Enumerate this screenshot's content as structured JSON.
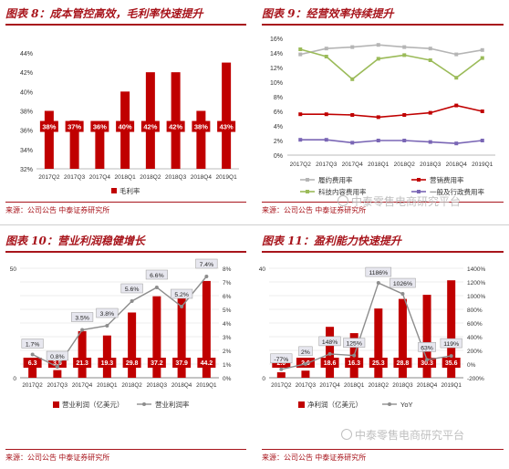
{
  "colors": {
    "accent": "#a8151c",
    "bar": "#c00000",
    "grid": "#e6e6e6"
  },
  "panels": [
    {
      "title": "图表 8：成本管控高效，毛利率快速提升",
      "source": "来源：公司公告  中泰证券研究所",
      "chart_data": {
        "type": "bar",
        "categories": [
          "2017Q2",
          "2017Q3",
          "2017Q4",
          "2018Q1",
          "2018Q2",
          "2018Q3",
          "2018Q4",
          "2019Q1"
        ],
        "series": [
          {
            "name": "毛利率",
            "values": [
              38,
              37,
              36,
              40,
              42,
              42,
              38,
              43
            ]
          }
        ],
        "data_labels": [
          "38%",
          "37%",
          "36%",
          "40%",
          "42%",
          "42%",
          "38%",
          "43%"
        ],
        "ylim": [
          32,
          44
        ],
        "yticks": [
          "32%",
          "34%",
          "36%",
          "38%",
          "40%",
          "42%",
          "44%"
        ],
        "legend": "bottom"
      }
    },
    {
      "title": "图表 9：经营效率持续提升",
      "source": "来源：公司公告  中泰证券研究所",
      "chart_data": {
        "type": "line",
        "categories": [
          "2017Q2",
          "2017Q3",
          "2017Q4",
          "2018Q1",
          "2018Q2",
          "2018Q3",
          "2018Q4",
          "2019Q1"
        ],
        "series": [
          {
            "name": "履约费用率",
            "color": "#b5b5b5",
            "values": [
              13.8,
              14.6,
              14.8,
              15.1,
              14.8,
              14.6,
              13.8,
              14.4
            ]
          },
          {
            "name": "营销费用率",
            "color": "#c00000",
            "values": [
              5.6,
              5.6,
              5.5,
              5.2,
              5.5,
              5.8,
              6.8,
              6.0
            ]
          },
          {
            "name": "科技内容费用率",
            "color": "#9bbb59",
            "values": [
              14.5,
              13.5,
              10.4,
              13.2,
              13.7,
              13.0,
              10.6,
              13.3
            ]
          },
          {
            "name": "一般及行政费用率",
            "color": "#7a66b5",
            "values": [
              2.1,
              2.1,
              1.7,
              2.0,
              2.0,
              1.8,
              1.6,
              2.0
            ]
          }
        ],
        "ylim": [
          0,
          16
        ],
        "yticks": [
          "0%",
          "2%",
          "4%",
          "6%",
          "8%",
          "10%",
          "12%",
          "14%",
          "16%"
        ],
        "legend": "bottom"
      }
    },
    {
      "title": "图表 10：营业利润稳健增长",
      "source": "来源：公司公告  中泰证券研究所",
      "chart_data": {
        "type": "bar",
        "categories": [
          "2017Q2",
          "2017Q3",
          "2017Q4",
          "2018Q1",
          "2018Q2",
          "2018Q3",
          "2018Q4",
          "2019Q1"
        ],
        "series": [
          {
            "name": "营业利润（亿美元）",
            "values": [
              6.3,
              3.5,
              21.3,
              19.3,
              29.8,
              37.2,
              37.9,
              44.2
            ]
          },
          {
            "name": "营业利润率",
            "values": [
              1.7,
              0.8,
              3.5,
              3.8,
              5.6,
              6.6,
              5.2,
              7.4
            ]
          }
        ],
        "bar_labels": [
          "6.3",
          "3.5",
          "21.3",
          "19.3",
          "29.8",
          "37.2",
          "37.9",
          "44.2"
        ],
        "line_labels": [
          "1.7%",
          "0.8%",
          "3.5%",
          "3.8%",
          "5.6%",
          "6.6%",
          "5.2%",
          "7.4%"
        ],
        "ylim": [
          0,
          50
        ],
        "yticks": [
          "0",
          "",
          "",
          "",
          "",
          "50"
        ],
        "y2lim": [
          0,
          8
        ],
        "y2ticks": [
          "0%",
          "1%",
          "2%",
          "3%",
          "4%",
          "5%",
          "6%",
          "7%",
          "8%"
        ],
        "legend": "bottom"
      }
    },
    {
      "title": "图表 11：盈利能力快速提升",
      "source": "来源：公司公告  中泰证券研究所",
      "chart_data": {
        "type": "bar",
        "categories": [
          "2017Q2",
          "2017Q3",
          "2017Q4",
          "2018Q1",
          "2018Q2",
          "2018Q3",
          "2018Q4",
          "2019Q1"
        ],
        "series": [
          {
            "name": "净利润（亿美元）",
            "values": [
              2.0,
              2.6,
              18.6,
              16.3,
              25.3,
              28.8,
              30.3,
              35.6
            ]
          },
          {
            "name": "YoY",
            "values": [
              -77,
              2,
              148,
              125,
              1186,
              1026,
              63,
              119
            ]
          }
        ],
        "bar_labels": [
          "2.0",
          "2.6",
          "18.6",
          "16.3",
          "25.3",
          "28.8",
          "30.3",
          "35.6"
        ],
        "line_labels": [
          "-77%",
          "2%",
          "148%",
          "125%",
          "1186%",
          "1026%",
          "63%",
          "119%"
        ],
        "ylim": [
          0,
          40
        ],
        "yticks": [
          "0",
          "",
          "",
          "",
          "",
          "",
          "",
          "",
          "40"
        ],
        "y2lim": [
          -200,
          1400
        ],
        "y2ticks": [
          "-200%",
          "0%",
          "200%",
          "400%",
          "600%",
          "800%",
          "1000%",
          "1200%",
          "1400%"
        ],
        "legend": "bottom"
      }
    }
  ],
  "watermark": "中泰零售电商研究平台"
}
